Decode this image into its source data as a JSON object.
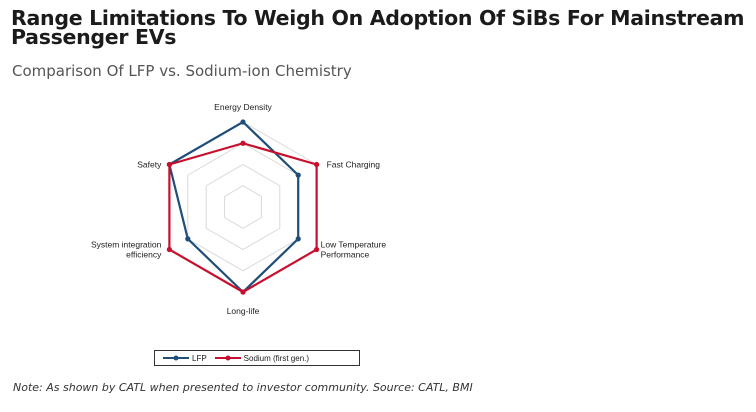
{
  "title": "Range Limitations To Weigh On Adoption Of SiBs For Mainstream Passenger EVs",
  "subtitle": "Comparison Of LFP vs. Sodium-ion Chemistry",
  "note": "Note: As shown by CATL when presented to investor community. Source: CATL, BMI",
  "chart_data": {
    "type": "radar",
    "axes": [
      [
        "Energy Density"
      ],
      [
        "Fast Charging"
      ],
      [
        "Low Temperature",
        "Performance"
      ],
      [
        "Long-life"
      ],
      [
        "System integration",
        "efficiency"
      ],
      [
        "Safety"
      ]
    ],
    "range": [
      0,
      4
    ],
    "rings": 4,
    "series": [
      {
        "name": "LFP",
        "color": "#1f4e79",
        "values": [
          4,
          3,
          3,
          4,
          3,
          4
        ]
      },
      {
        "name": "Sodium (first gen.)",
        "color": "#c8102e",
        "values": [
          3,
          4,
          4,
          4,
          4,
          4
        ]
      }
    ],
    "legend_position": "bottom",
    "grid": true
  }
}
